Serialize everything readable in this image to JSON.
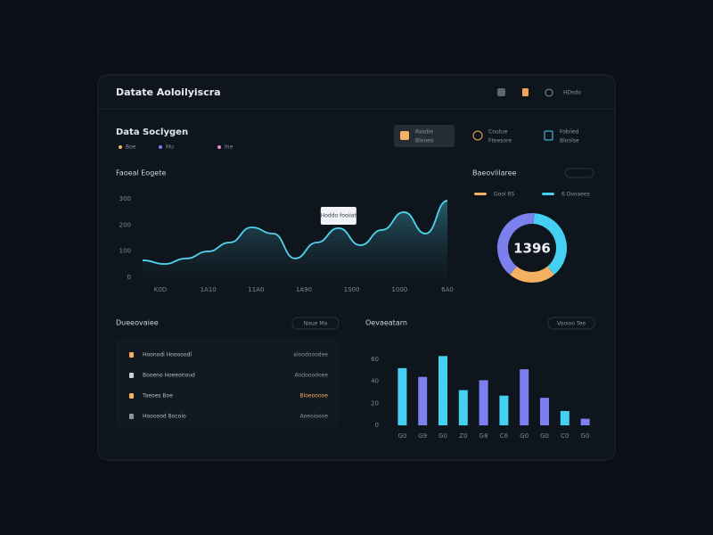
{
  "header": {
    "title": "Datate Aoloilyiscra",
    "user": "HDsdo"
  },
  "summary": {
    "title": "Data Soclygen",
    "legend": [
      "Boe",
      "Mu",
      "Ine"
    ]
  },
  "kpis": [
    {
      "label": "Rasdie",
      "sub": "Blooeo"
    },
    {
      "label": "Coutue",
      "sub": "Fteesore"
    },
    {
      "label": "Fobiled",
      "sub": "Bloolse"
    }
  ],
  "line_chart": {
    "type": "area",
    "title": "Faoeal Eogete",
    "tooltip": "Hoddo fooiiat",
    "x_labels": [
      "K0D",
      "1A10",
      "11A0",
      "1A90",
      "1S00",
      "1000",
      "6A0"
    ],
    "values": [
      65,
      51,
      72,
      99,
      133,
      191,
      167,
      72,
      133,
      188,
      123,
      181,
      249,
      167,
      293
    ],
    "color": "#4fd3ee",
    "ylim": [
      0,
      300
    ],
    "yticks": [
      0,
      100,
      200,
      300
    ]
  },
  "donut": {
    "type": "pie",
    "title": "Baeovlilaree",
    "center": "1396",
    "segments": [
      {
        "name": "Gool 6S",
        "color": "#f4b063",
        "value": 22
      },
      {
        "name": "6 Dvoaees",
        "color": "#43d0f2",
        "value": 38
      },
      {
        "color": "#7b80ee",
        "value": 40
      }
    ]
  },
  "list": {
    "title": "Dueeovaiee",
    "button": "Naue Ma",
    "rows": [
      [
        "Hoonodi Hooooodl",
        "aloodooodee"
      ],
      [
        "Booeno Hoeeonoud",
        "Aodooodoee"
      ],
      [
        "Taeoes Boe",
        "Bloeooooe"
      ],
      [
        "Hoooood Bocoio",
        "Aoeoioooe"
      ]
    ]
  },
  "bar_chart": {
    "type": "bar",
    "title": "Oevaeatarn",
    "button": "Vooioo Tee",
    "categories": [
      "G0",
      "G9",
      "G0",
      "Z0",
      "G8",
      "C6",
      "G0",
      "G0",
      "C0",
      "G0"
    ],
    "values": [
      52,
      44,
      63,
      32,
      41,
      27,
      51,
      25,
      13,
      6
    ],
    "colors": [
      "#43d0f2",
      "#7b80ee",
      "#43d0f2",
      "#43d0f2",
      "#7b80ee",
      "#43d0f2",
      "#7b80ee",
      "#7b80ee",
      "#43d0f2",
      "#7b80ee"
    ],
    "ylim": [
      0,
      60
    ],
    "yticks": [
      0,
      20,
      40,
      60
    ]
  }
}
